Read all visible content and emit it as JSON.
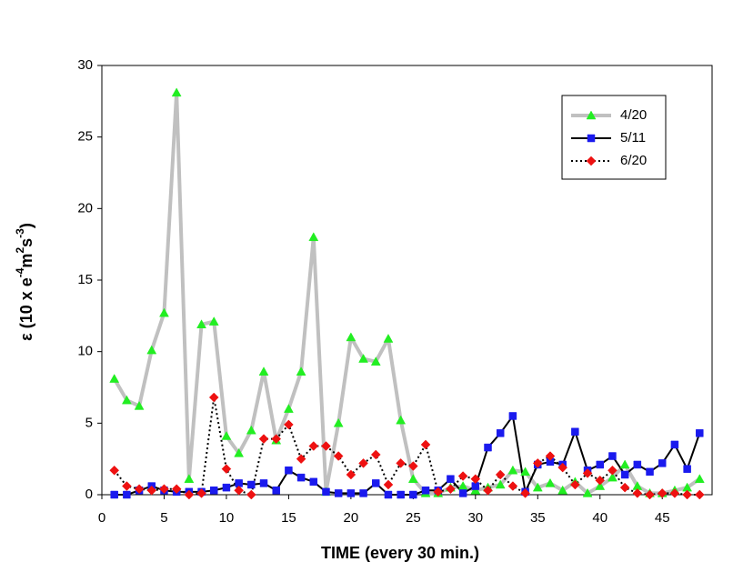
{
  "chart_data": {
    "type": "line",
    "xlabel": "TIME  (every 30 min.)",
    "ylabel": [
      "ε (10 x e",
      "-4",
      "m",
      "2",
      "s",
      "-3",
      ")"
    ],
    "x": [
      1,
      2,
      3,
      4,
      5,
      6,
      7,
      8,
      9,
      10,
      11,
      12,
      13,
      14,
      15,
      16,
      17,
      18,
      19,
      20,
      21,
      22,
      23,
      24,
      25,
      26,
      27,
      28,
      29,
      30,
      31,
      32,
      33,
      34,
      35,
      36,
      37,
      38,
      39,
      40,
      41,
      42,
      43,
      44,
      45,
      46,
      47,
      48
    ],
    "xlim": [
      0,
      49
    ],
    "xticks": [
      0,
      5,
      10,
      15,
      20,
      25,
      30,
      35,
      40,
      45
    ],
    "ylim": [
      0,
      30
    ],
    "yticks": [
      0,
      5,
      10,
      15,
      20,
      25,
      30
    ],
    "grid": false,
    "legend": "upper right",
    "series": [
      {
        "name": "4/20",
        "color": "#22ee22",
        "line_color": "#c0c0c0",
        "line_width": 4,
        "line_style": "solid",
        "marker": "triangle",
        "values": [
          8.1,
          6.6,
          6.2,
          10.1,
          12.7,
          28.1,
          1.1,
          11.9,
          12.1,
          4.1,
          2.9,
          4.5,
          8.6,
          3.8,
          6.0,
          8.6,
          18.0,
          0.2,
          5.0,
          11.0,
          9.5,
          9.3,
          10.9,
          5.2,
          1.1,
          0.1,
          0.1,
          0.5,
          0.6,
          0.3,
          0.5,
          0.7,
          1.7,
          1.6,
          0.5,
          0.8,
          0.3,
          0.9,
          0.1,
          0.6,
          1.2,
          2.1,
          0.6,
          0.1,
          0.1,
          0.3,
          0.5,
          1.1
        ]
      },
      {
        "name": "5/11",
        "color": "#1a1aee",
        "line_color": "#000000",
        "line_width": 2,
        "line_style": "solid",
        "marker": "square",
        "values": [
          0.0,
          0.0,
          0.3,
          0.6,
          0.3,
          0.2,
          0.2,
          0.2,
          0.3,
          0.5,
          0.8,
          0.7,
          0.8,
          0.3,
          1.7,
          1.2,
          0.9,
          0.2,
          0.1,
          0.1,
          0.1,
          0.8,
          0.0,
          0.0,
          0.0,
          0.3,
          0.3,
          1.1,
          0.1,
          0.6,
          3.3,
          4.3,
          5.5,
          0.2,
          2.1,
          2.3,
          2.1,
          4.4,
          1.7,
          2.1,
          2.7,
          1.4,
          2.1,
          1.6,
          2.2,
          3.5,
          1.8,
          4.3
        ]
      },
      {
        "name": "6/20",
        "color": "#ee1111",
        "line_color": "#000000",
        "line_width": 2,
        "line_style": "dotted",
        "marker": "diamond",
        "values": [
          1.7,
          0.6,
          0.4,
          0.3,
          0.4,
          0.4,
          0.0,
          0.1,
          6.8,
          1.8,
          0.3,
          0.0,
          3.9,
          3.9,
          4.9,
          2.5,
          3.4,
          3.4,
          2.7,
          1.4,
          2.2,
          2.8,
          0.7,
          2.2,
          2.0,
          3.5,
          0.2,
          0.4,
          1.3,
          1.1,
          0.3,
          1.4,
          0.6,
          0.1,
          2.2,
          2.7,
          1.9,
          0.7,
          1.5,
          1.0,
          1.7,
          0.5,
          0.1,
          0.0,
          0.1,
          0.1,
          0.0,
          0.0
        ]
      }
    ]
  }
}
